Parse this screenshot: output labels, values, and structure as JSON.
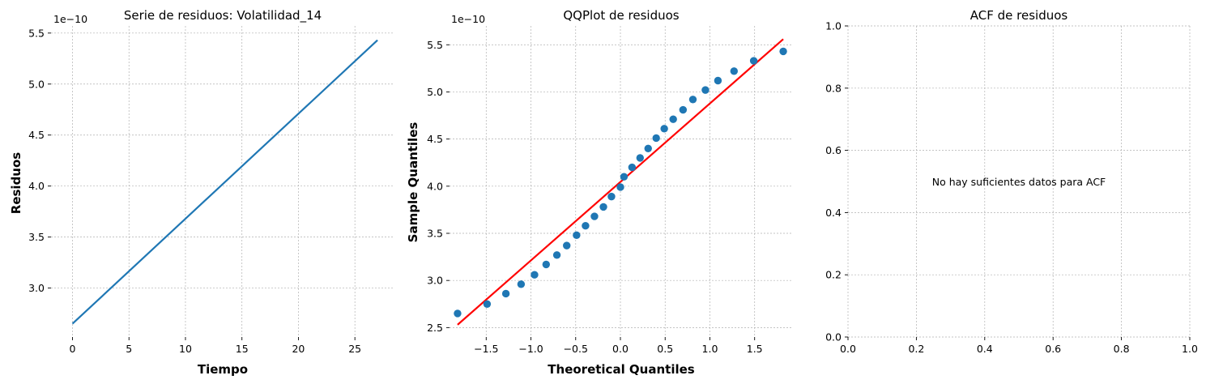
{
  "chart_data": [
    {
      "type": "line",
      "title": "Serie de residuos: Volatilidad_14",
      "xlabel": "Tiempo",
      "ylabel": "Residuos",
      "offset_text": "1e−10",
      "xlim": [
        -1.9,
        28.5
      ],
      "ylim": [
        2.52,
        5.57
      ],
      "xticks": [
        0,
        5,
        10,
        15,
        20,
        25
      ],
      "xtick_labels": [
        "0",
        "5",
        "10",
        "15",
        "20",
        "25"
      ],
      "yticks": [
        3.0,
        3.5,
        4.0,
        4.5,
        5.0,
        5.5
      ],
      "ytick_labels": [
        "3.0",
        "3.5",
        "4.0",
        "4.5",
        "5.0",
        "5.5"
      ],
      "grid": true,
      "series": [
        {
          "color": "#1f77b4",
          "x": [
            0,
            27
          ],
          "y": [
            2.65,
            5.43
          ]
        }
      ]
    },
    {
      "type": "scatter",
      "title": "QQPlot de residuos",
      "xlabel": "Theoretical Quantiles",
      "ylabel": "Sample Quantiles",
      "offset_text": "1e−10",
      "xlim": [
        -1.91,
        1.91
      ],
      "ylim": [
        2.4,
        5.7
      ],
      "xticks": [
        -1.5,
        -1.0,
        -0.5,
        0.0,
        0.5,
        1.0,
        1.5
      ],
      "xtick_labels": [
        "−1.5",
        "−1.0",
        "−0.5",
        "0.0",
        "0.5",
        "1.0",
        "1.5"
      ],
      "yticks": [
        2.5,
        3.0,
        3.5,
        4.0,
        4.5,
        5.0,
        5.5
      ],
      "ytick_labels": [
        "2.5",
        "3.0",
        "3.5",
        "4.0",
        "4.5",
        "5.0",
        "5.5"
      ],
      "grid": true,
      "points": {
        "color": "#1f77b4",
        "x": [
          -1.82,
          -1.49,
          -1.28,
          -1.11,
          -0.96,
          -0.83,
          -0.71,
          -0.6,
          -0.49,
          -0.39,
          -0.29,
          -0.19,
          -0.1,
          0.0,
          0.04,
          0.13,
          0.22,
          0.31,
          0.4,
          0.49,
          0.59,
          0.7,
          0.81,
          0.95,
          1.09,
          1.27,
          1.49,
          1.82
        ],
        "y": [
          2.65,
          2.75,
          2.86,
          2.96,
          3.06,
          3.17,
          3.27,
          3.37,
          3.48,
          3.58,
          3.68,
          3.78,
          3.89,
          3.99,
          4.1,
          4.2,
          4.3,
          4.4,
          4.51,
          4.61,
          4.71,
          4.81,
          4.92,
          5.02,
          5.12,
          5.22,
          5.33,
          5.43
        ]
      },
      "reference_line": {
        "color": "#ff0000",
        "x": [
          -1.82,
          1.82
        ],
        "y": [
          2.53,
          5.56
        ]
      }
    },
    {
      "type": "line",
      "title": "ACF de residuos",
      "annotation": "No hay suficientes datos para ACF",
      "xlim": [
        0,
        1
      ],
      "ylim": [
        0,
        1
      ],
      "xticks": [
        0.0,
        0.2,
        0.4,
        0.6,
        0.8,
        1.0
      ],
      "xtick_labels": [
        "0.0",
        "0.2",
        "0.4",
        "0.6",
        "0.8",
        "1.0"
      ],
      "yticks": [
        0.0,
        0.2,
        0.4,
        0.6,
        0.8,
        1.0
      ],
      "ytick_labels": [
        "0.0",
        "0.2",
        "0.4",
        "0.6",
        "0.8",
        "1.0"
      ],
      "grid": true,
      "series": []
    }
  ]
}
